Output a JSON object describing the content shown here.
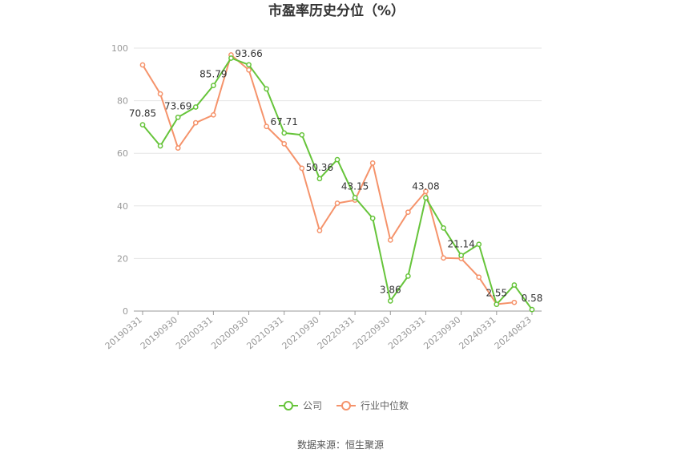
{
  "chart_data": {
    "type": "line",
    "title": "市盈率历史分位（%）",
    "xlabel": "",
    "ylabel": "",
    "ylim": [
      0,
      100
    ],
    "yticks": [
      0,
      20,
      40,
      60,
      80,
      100
    ],
    "grid": true,
    "legend_position": "bottom",
    "x": [
      "20190331",
      "20190630",
      "20190930",
      "20191231",
      "20200331",
      "20200630",
      "20200930",
      "20201231",
      "20210331",
      "20210630",
      "20210930",
      "20211231",
      "20220331",
      "20220630",
      "20220930",
      "20221231",
      "20230331",
      "20230630",
      "20230930",
      "20231231",
      "20240331",
      "20240630",
      "20240823"
    ],
    "x_tick_labels": [
      "20190331",
      "20190930",
      "20200331",
      "20200930",
      "20210331",
      "20210930",
      "20220331",
      "20220930",
      "20230331",
      "20230930",
      "20240331",
      "20240823"
    ],
    "series": [
      {
        "name": "公司",
        "color": "#66c43a",
        "values": [
          70.85,
          62.8,
          73.69,
          77.6,
          85.79,
          96.2,
          93.66,
          84.5,
          67.71,
          67.0,
          50.36,
          57.6,
          43.15,
          35.3,
          3.86,
          13.3,
          43.08,
          31.6,
          21.14,
          25.4,
          2.55,
          9.9,
          0.58
        ]
      },
      {
        "name": "行业中位数",
        "color": "#f5936b",
        "values": [
          93.6,
          82.6,
          62.0,
          71.6,
          74.6,
          97.4,
          91.7,
          70.2,
          63.6,
          54.3,
          30.6,
          41.0,
          42.2,
          56.3,
          27.0,
          37.6,
          45.5,
          20.2,
          20.0,
          12.9,
          2.6,
          3.3,
          null
        ]
      }
    ],
    "data_labels": [
      {
        "series": 0,
        "index": 0,
        "text": "70.85"
      },
      {
        "series": 0,
        "index": 2,
        "text": "73.69"
      },
      {
        "series": 0,
        "index": 4,
        "text": "85.79"
      },
      {
        "series": 0,
        "index": 6,
        "text": "93.66"
      },
      {
        "series": 0,
        "index": 8,
        "text": "67.71"
      },
      {
        "series": 0,
        "index": 10,
        "text": "50.36"
      },
      {
        "series": 0,
        "index": 12,
        "text": "43.15"
      },
      {
        "series": 0,
        "index": 14,
        "text": "3.86"
      },
      {
        "series": 0,
        "index": 16,
        "text": "43.08"
      },
      {
        "series": 0,
        "index": 18,
        "text": "21.14"
      },
      {
        "series": 0,
        "index": 20,
        "text": "2.55"
      },
      {
        "series": 0,
        "index": 22,
        "text": "0.58"
      }
    ]
  },
  "source": "数据来源：恒生聚源"
}
